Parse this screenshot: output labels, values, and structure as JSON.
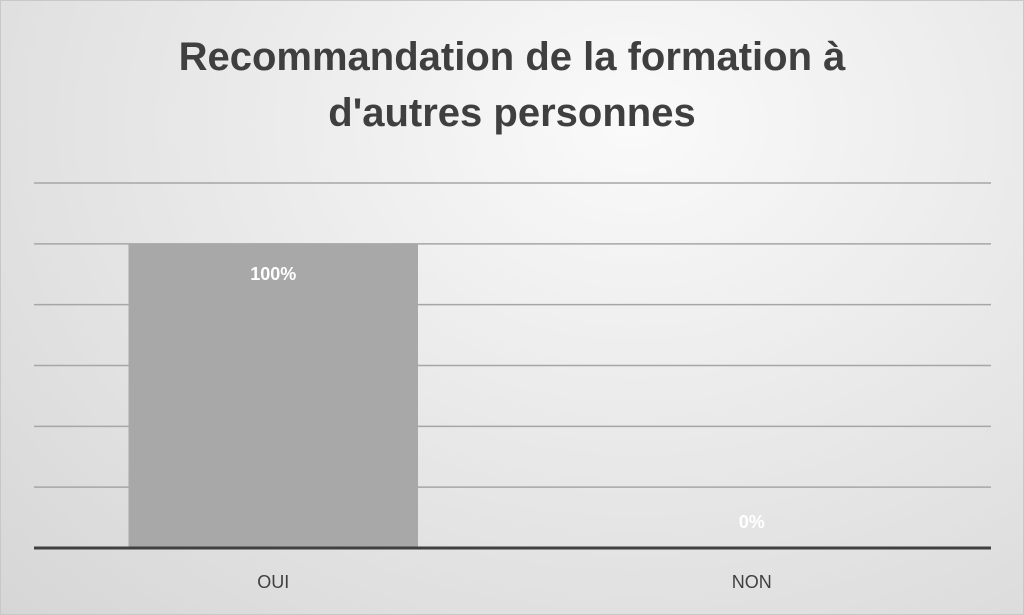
{
  "chart_data": {
    "type": "bar",
    "title": "Recommandation de la formation à d'autres personnes",
    "title_lines": [
      "Recommandation de la formation à",
      "d'autres personnes"
    ],
    "categories": [
      "OUI",
      "NON"
    ],
    "values": [
      100,
      0
    ],
    "data_labels": [
      "100%",
      "0%"
    ],
    "ylim": [
      0,
      120
    ],
    "y_gridline_step": 20,
    "grid": true,
    "y_tick_labels_visible": false,
    "legend": "none",
    "xlabel": "",
    "ylabel": "",
    "colors": {
      "bar": "#a8a8a8",
      "data_label": "#ffffff",
      "gridline": "#a6a6a6",
      "axis": "#404040",
      "title": "#3f3f3f"
    }
  }
}
